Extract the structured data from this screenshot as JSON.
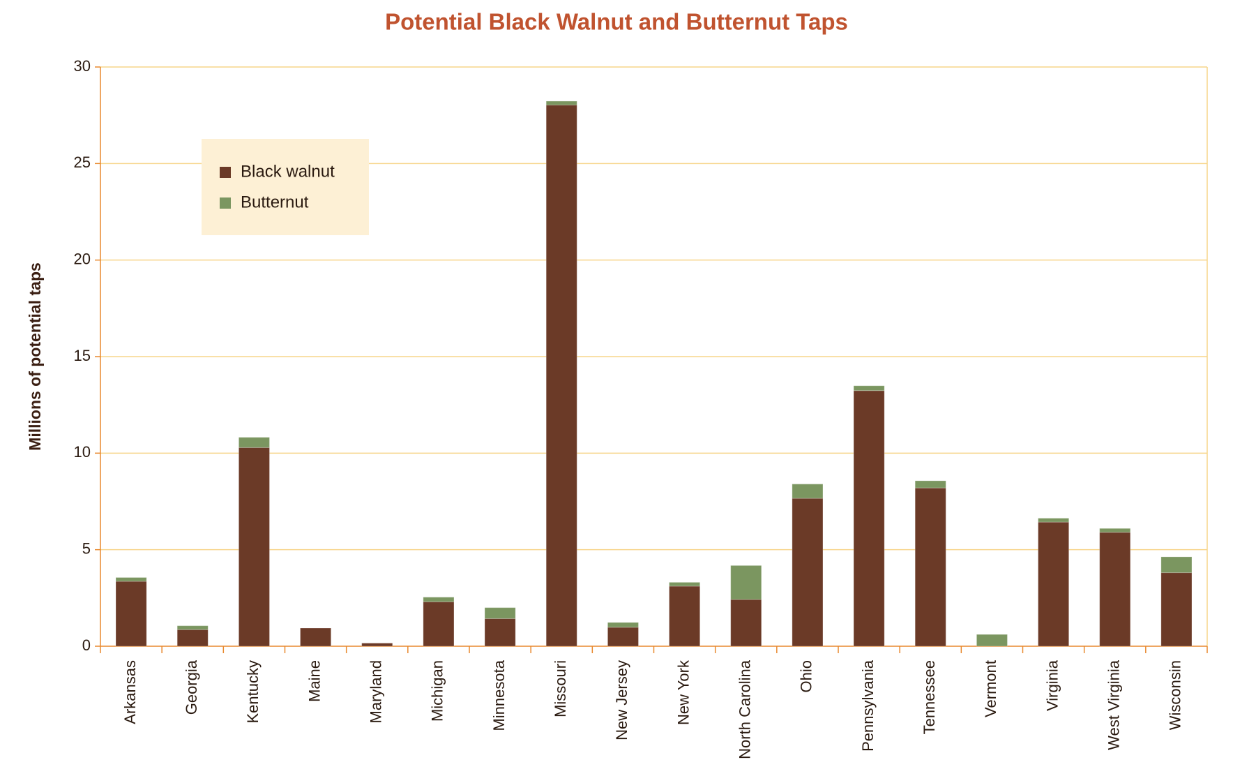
{
  "chart_data": {
    "type": "stacked_bar",
    "title": "Potential Black Walnut and Butternut Taps",
    "y_label": "Millions of potential taps",
    "categories": [
      "Arkansas",
      "Georgia",
      "Kentucky",
      "Maine",
      "Maryland",
      "Michigan",
      "Minnesota",
      "Missouri",
      "New Jersey",
      "New York",
      "North Carolina",
      "Ohio",
      "Pennsylvania",
      "Tennessee",
      "Vermont",
      "Virginia",
      "West Virginia",
      "Wisconsin"
    ],
    "series": [
      {
        "name": "Black walnut",
        "color": "#6b3a27",
        "values": [
          3.36,
          0.86,
          10.29,
          0.94,
          0.16,
          2.3,
          1.43,
          28.03,
          0.98,
          3.11,
          2.42,
          7.66,
          13.24,
          8.2,
          0,
          6.43,
          5.9,
          3.81
        ]
      },
      {
        "name": "Butternut",
        "color": "#7b9660",
        "values": [
          0.2,
          0.2,
          0.53,
          0,
          0,
          0.24,
          0.57,
          0.2,
          0.25,
          0.2,
          1.76,
          0.74,
          0.25,
          0.37,
          0.61,
          0.2,
          0.2,
          0.82
        ]
      }
    ],
    "ylim": [
      0,
      30
    ],
    "yticks": [
      0,
      5,
      10,
      15,
      20,
      25,
      30
    ],
    "grid": true,
    "legend": "top-left"
  }
}
